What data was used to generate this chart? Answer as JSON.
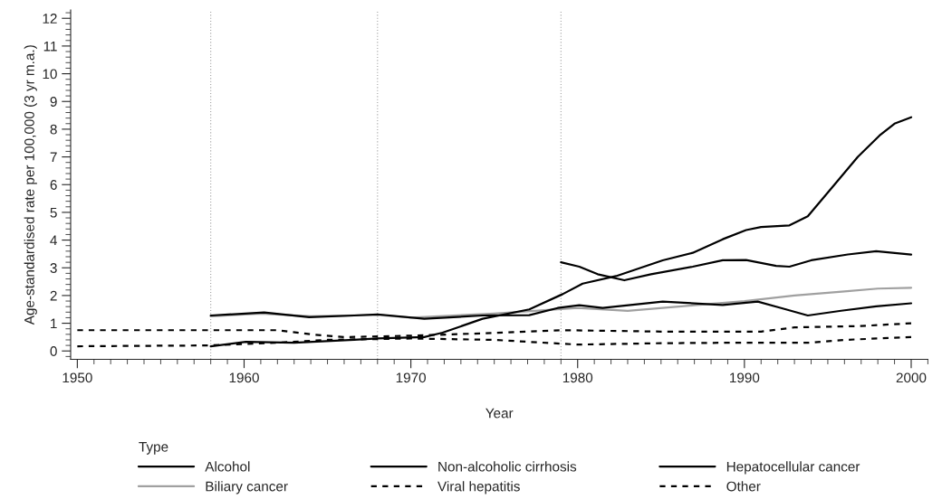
{
  "chart_data": {
    "type": "line",
    "xlabel": "Year",
    "ylabel": "Age-standardised rate per 100,000 (3 yr m.a.)",
    "legend_title": "Type",
    "legend": "bottom",
    "xlim": [
      1949.6,
      2001
    ],
    "xticks": [
      1950,
      1960,
      1970,
      1980,
      1990,
      2000
    ],
    "ylim": [
      -0.3,
      12.3
    ],
    "yticks": [
      0,
      1,
      2,
      3,
      4,
      5,
      6,
      7,
      8,
      9,
      10,
      11,
      12
    ],
    "grid": false,
    "ref_lines": [
      {
        "axis": "x",
        "value": 1958,
        "color": "#a0a0a0",
        "line_style": "dotted"
      },
      {
        "axis": "x",
        "value": 1968,
        "color": "#a0a0a0",
        "line_style": "dotted"
      },
      {
        "axis": "x",
        "value": 1979,
        "color": "#a0a0a0",
        "line_style": "dotted"
      }
    ],
    "series": [
      {
        "name": "Alcohol",
        "color": "#000000",
        "line_style": "solid",
        "x": [
          1958,
          1960.1,
          1963,
          1966.6,
          1968,
          1970.8,
          1971.9,
          1974.3,
          1977.1,
          1979.1,
          1980.3,
          1982.3,
          1985.1,
          1986.9,
          1988.7,
          1990.1,
          1991,
          1992.7,
          1993.8,
          1995.4,
          1996.8,
          1998.1,
          1999,
          2000
        ],
        "values": [
          0.17,
          0.33,
          0.3,
          0.4,
          0.45,
          0.5,
          0.66,
          1.16,
          1.5,
          2.05,
          2.43,
          2.7,
          3.27,
          3.54,
          4.03,
          4.36,
          4.47,
          4.53,
          4.86,
          6.0,
          7.0,
          7.77,
          8.2,
          8.43
        ]
      },
      {
        "name": "Non-alcoholic cirrhosis",
        "color": "#000000",
        "line_style": "solid",
        "x": [
          1979,
          1980.1,
          1981.2,
          1982.8,
          1984.4,
          1986.9,
          1988.7,
          1990.1,
          1991.9,
          1992.7,
          1994,
          1996.2,
          1997.9,
          2000
        ],
        "values": [
          3.2,
          3.04,
          2.77,
          2.55,
          2.77,
          3.04,
          3.27,
          3.28,
          3.07,
          3.04,
          3.27,
          3.48,
          3.6,
          3.48
        ]
      },
      {
        "name": "Hepatocellular cancer",
        "color": "#000000",
        "line_style": "solid",
        "x": [
          1958,
          1961.2,
          1963.9,
          1966.6,
          1968,
          1970.8,
          1974.3,
          1977.1,
          1978.8,
          1980.1,
          1981.5,
          1985.1,
          1988.7,
          1990.8,
          1992.2,
          1993.8,
          1995.8,
          1997.9,
          2000
        ],
        "values": [
          1.28,
          1.39,
          1.22,
          1.28,
          1.32,
          1.16,
          1.28,
          1.29,
          1.55,
          1.65,
          1.55,
          1.78,
          1.66,
          1.78,
          1.55,
          1.28,
          1.45,
          1.61,
          1.72
        ]
      },
      {
        "name": "Biliary cancer",
        "color": "#a0a0a0",
        "line_style": "solid",
        "x": [
          1958,
          1961,
          1964,
          1968,
          1970,
          1975,
          1980,
          1983,
          1987,
          1990,
          1993,
          1996,
          1998,
          2000
        ],
        "values": [
          1.25,
          1.35,
          1.25,
          1.3,
          1.2,
          1.35,
          1.55,
          1.45,
          1.65,
          1.8,
          2.0,
          2.15,
          2.25,
          2.28
        ]
      },
      {
        "name": "Viral hepatitis",
        "color": "#000000",
        "line_style": "dashed",
        "x": [
          1950,
          1962,
          1964,
          1966,
          1970,
          1975,
          1979,
          1985,
          1991,
          1993,
          1997,
          2000
        ],
        "values": [
          0.75,
          0.75,
          0.6,
          0.5,
          0.55,
          0.65,
          0.75,
          0.7,
          0.7,
          0.85,
          0.9,
          1.0
        ]
      },
      {
        "name": "Other",
        "color": "#000000",
        "line_style": "dashed",
        "x": [
          1950,
          1958,
          1962,
          1965,
          1970,
          1975,
          1980,
          1985,
          1990,
          1994,
          1996,
          2000
        ],
        "values": [
          0.17,
          0.2,
          0.3,
          0.4,
          0.45,
          0.4,
          0.23,
          0.28,
          0.3,
          0.3,
          0.4,
          0.5
        ]
      }
    ]
  }
}
